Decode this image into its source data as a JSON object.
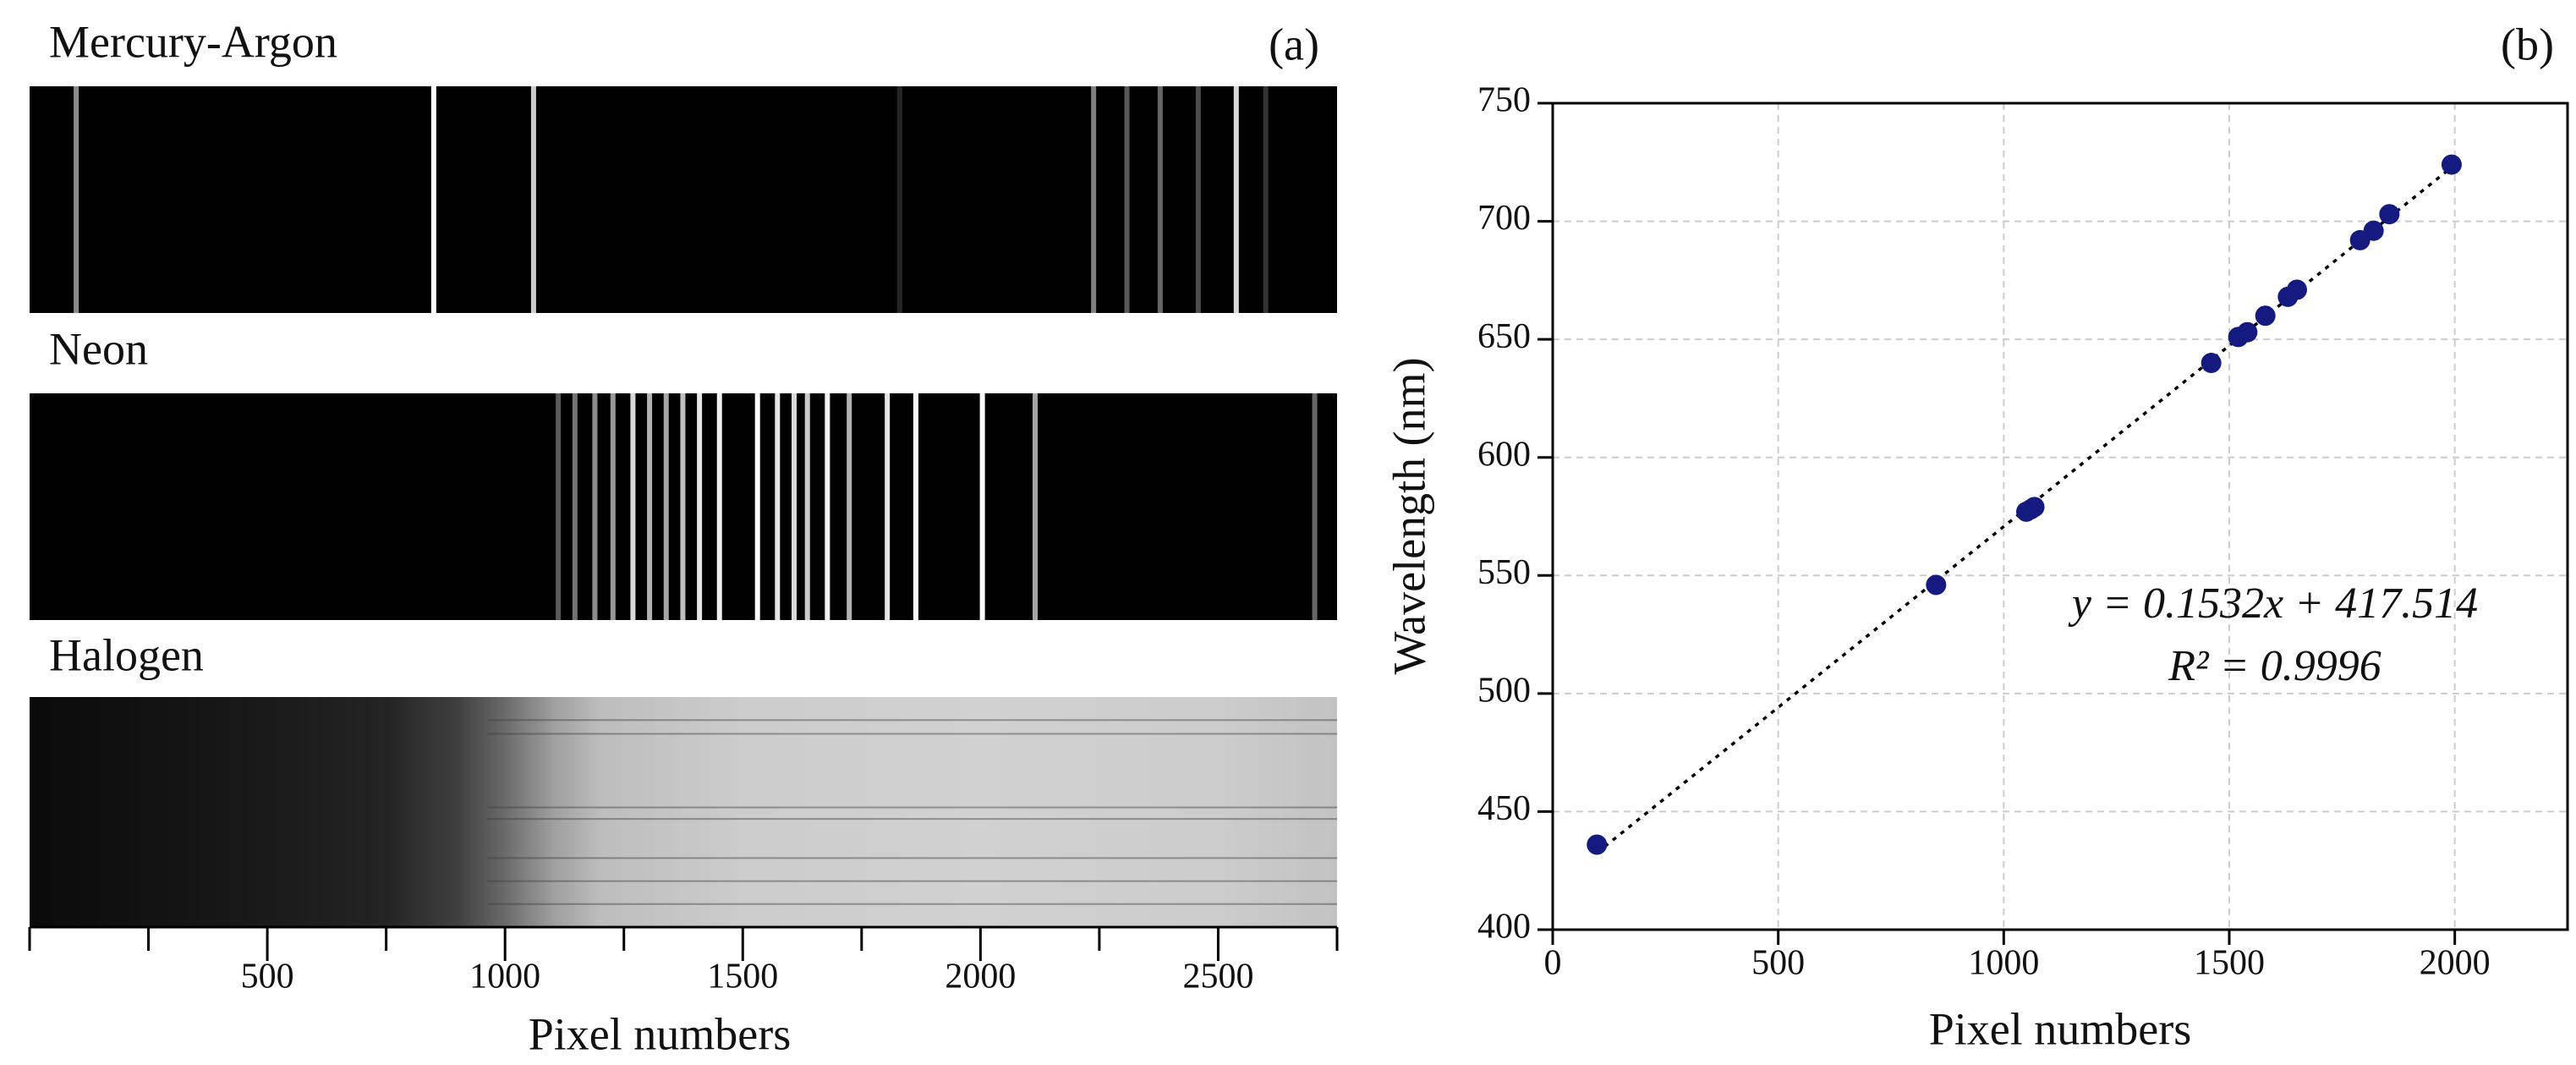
{
  "chart_data": [
    {
      "type": "spectra",
      "title": "(a)",
      "xlabel": "Pixel numbers",
      "xlim": [
        0,
        2750
      ],
      "xticks": [
        500,
        1000,
        1500,
        2000,
        2500
      ],
      "xminorticks": [
        0,
        250,
        750,
        1250,
        1750,
        2250,
        2750
      ],
      "strips": [
        {
          "name": "Mercury-Argon",
          "lines": [
            98,
            850,
            1060,
            1830,
            2238,
            2308,
            2378,
            2458,
            2538,
            2600
          ],
          "intensity": [
            0.55,
            1.0,
            0.8,
            0.15,
            0.5,
            0.35,
            0.4,
            0.3,
            0.85,
            0.2
          ]
        },
        {
          "name": "Neon",
          "lines": [
            1112,
            1147,
            1189,
            1227,
            1269,
            1304,
            1339,
            1374,
            1409,
            1451,
            1531,
            1573,
            1608,
            1636,
            1678,
            1724,
            1804,
            1864,
            2004,
            2115,
            2703
          ],
          "intensity": [
            0.35,
            0.45,
            0.55,
            0.6,
            0.85,
            0.7,
            0.65,
            0.75,
            0.9,
            0.95,
            1.0,
            0.9,
            0.85,
            0.8,
            0.95,
            0.7,
            0.9,
            1.0,
            1.0,
            0.65,
            0.4
          ]
        },
        {
          "name": "Halogen",
          "x": [
            0,
            250,
            500,
            750,
            900,
            1000,
            1100,
            1200,
            1500,
            2000,
            2500,
            2750
          ],
          "intensity": [
            0.04,
            0.07,
            0.1,
            0.14,
            0.25,
            0.42,
            0.62,
            0.74,
            0.8,
            0.82,
            0.8,
            0.76
          ]
        }
      ]
    },
    {
      "type": "scatter",
      "title": "(b)",
      "xlabel": "Pixel numbers",
      "ylabel": "Wavelength (nm)",
      "x": [
        98,
        850,
        1050,
        1060,
        1068,
        1460,
        1520,
        1540,
        1580,
        1630,
        1650,
        1790,
        1820,
        1855,
        1993
      ],
      "values": [
        436,
        546,
        577,
        578,
        579,
        640,
        651,
        653,
        660,
        668,
        671,
        692,
        696,
        703,
        724
      ],
      "color": "#141a80",
      "xlim": [
        0,
        2250
      ],
      "ylim": [
        400,
        750
      ],
      "xticks": [
        0,
        500,
        1000,
        1500,
        2000
      ],
      "yticks": [
        400,
        450,
        500,
        550,
        600,
        650,
        700,
        750
      ],
      "grid": true,
      "fit": {
        "slope": 0.1532,
        "intercept": 417.514,
        "x_range": [
          98,
          1993
        ]
      },
      "annotations": [
        "y = 0.1532x + 417.514",
        "R² = 0.9996"
      ]
    }
  ]
}
